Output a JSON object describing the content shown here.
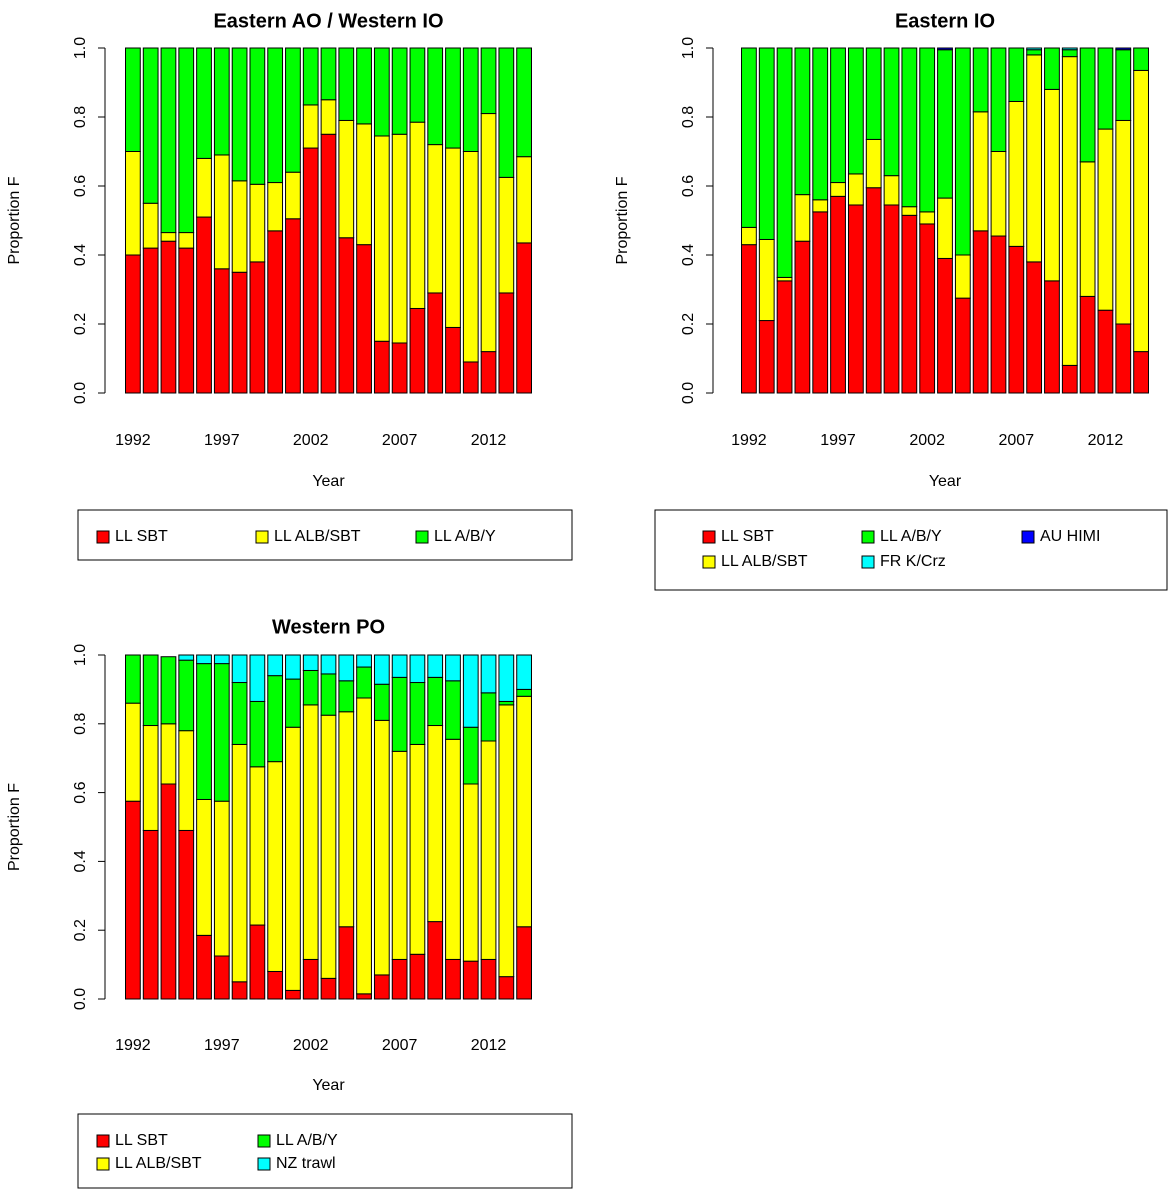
{
  "chart_data": [
    {
      "type": "bar",
      "stacked": true,
      "title": "Eastern AO / Western IO",
      "xlabel": "Year",
      "ylabel": "Proportion F",
      "categories": [
        1992,
        null,
        null,
        null,
        null,
        1997,
        null,
        null,
        null,
        null,
        2002,
        null,
        null,
        null,
        null,
        2007,
        null,
        null,
        null,
        null,
        2012,
        null,
        null
      ],
      "series": [
        {
          "name": "LL SBT",
          "color": "#ff0000",
          "values": [
            0.4,
            0.42,
            0.44,
            0.42,
            0.51,
            0.36,
            0.35,
            0.38,
            0.47,
            0.505,
            0.71,
            0.75,
            0.45,
            0.43,
            0.15,
            0.145,
            0.245,
            0.29,
            0.19,
            0.09,
            0.12,
            0.29,
            0.435
          ]
        },
        {
          "name": "LL ALB/SBT",
          "color": "#ffff00",
          "values": [
            0.3,
            0.13,
            0.025,
            0.045,
            0.17,
            0.33,
            0.265,
            0.225,
            0.14,
            0.135,
            0.125,
            0.1,
            0.34,
            0.35,
            0.595,
            0.605,
            0.54,
            0.43,
            0.52,
            0.61,
            0.69,
            0.335,
            0.25
          ]
        },
        {
          "name": "LL A/B/Y",
          "color": "#00ff00",
          "values": [
            0.3,
            0.45,
            0.535,
            0.535,
            0.32,
            0.31,
            0.385,
            0.395,
            0.39,
            0.36,
            0.165,
            0.15,
            0.21,
            0.22,
            0.255,
            0.25,
            0.215,
            0.28,
            0.29,
            0.3,
            0.19,
            0.375,
            0.315
          ]
        }
      ],
      "ylim": [
        0,
        1
      ],
      "yticks": [
        {
          "value": 0,
          "label": "0.0"
        },
        0.2,
        0.4,
        0.6,
        0.8,
        {
          "value": 1,
          "label": "1.0"
        }
      ],
      "grid": false
    },
    {
      "type": "bar",
      "stacked": true,
      "title": "Eastern IO",
      "xlabel": "Year",
      "ylabel": "Proportion F",
      "categories": [
        1992,
        null,
        null,
        null,
        null,
        1997,
        null,
        null,
        null,
        null,
        2002,
        null,
        null,
        null,
        null,
        2007,
        null,
        null,
        null,
        null,
        2012,
        null,
        null
      ],
      "series": [
        {
          "name": "LL SBT",
          "color": "#ff0000",
          "values": [
            0.43,
            0.21,
            0.325,
            0.44,
            0.525,
            0.57,
            0.545,
            0.595,
            0.545,
            0.515,
            0.49,
            0.39,
            0.275,
            0.47,
            0.455,
            0.425,
            0.38,
            0.325,
            0.08,
            0.28,
            0.24,
            0.2,
            0.12
          ]
        },
        {
          "name": "LL ALB/SBT",
          "color": "#ffff00",
          "values": [
            0.05,
            0.235,
            0.01,
            0.135,
            0.035,
            0.04,
            0.09,
            0.14,
            0.085,
            0.025,
            0.035,
            0.175,
            0.125,
            0.345,
            0.245,
            0.42,
            0.6,
            0.555,
            0.895,
            0.39,
            0.525,
            0.59,
            0.815
          ]
        },
        {
          "name": "LL A/B/Y",
          "color": "#00ff00",
          "values": [
            0.52,
            0.555,
            0.665,
            0.425,
            0.44,
            0.39,
            0.365,
            0.265,
            0.37,
            0.46,
            0.475,
            0.43,
            0.6,
            0.185,
            0.3,
            0.155,
            0.015,
            0.12,
            0.02,
            0.33,
            0.235,
            0.205,
            0.065
          ]
        },
        {
          "name": "FR K/Crz",
          "color": "#00ffff",
          "values": [
            0,
            0,
            0,
            0,
            0,
            0,
            0,
            0,
            0,
            0,
            0,
            0,
            0,
            0,
            0,
            0,
            0.005,
            0,
            0.005,
            0,
            0,
            0,
            0
          ]
        },
        {
          "name": "AU HIMI",
          "color": "#0000ff",
          "values": [
            0,
            0,
            0,
            0,
            0,
            0,
            0,
            0,
            0,
            0,
            0,
            0.005,
            0,
            0,
            0,
            0,
            0,
            0,
            0,
            0,
            0,
            0.005,
            0
          ]
        }
      ],
      "ylim": [
        0,
        1
      ],
      "yticks": [
        {
          "value": 0,
          "label": "0.0"
        },
        0.2,
        0.4,
        0.6,
        0.8,
        {
          "value": 1,
          "label": "1.0"
        }
      ],
      "grid": false
    },
    {
      "type": "bar",
      "stacked": true,
      "title": "Western PO",
      "xlabel": "Year",
      "ylabel": "Proportion F",
      "categories": [
        1992,
        null,
        null,
        null,
        null,
        1997,
        null,
        null,
        null,
        null,
        2002,
        null,
        null,
        null,
        null,
        2007,
        null,
        null,
        null,
        null,
        2012,
        null,
        null
      ],
      "series": [
        {
          "name": "LL SBT",
          "color": "#ff0000",
          "values": [
            0.575,
            0.49,
            0.625,
            0.49,
            0.185,
            0.125,
            0.05,
            0.215,
            0.08,
            0.025,
            0.115,
            0.06,
            0.21,
            0.015,
            0.07,
            0.115,
            0.13,
            0.225,
            0.115,
            0.11,
            0.115,
            0.065,
            0.21
          ]
        },
        {
          "name": "LL ALB/SBT",
          "color": "#ffff00",
          "values": [
            0.285,
            0.305,
            0.175,
            0.29,
            0.395,
            0.45,
            0.69,
            0.46,
            0.61,
            0.765,
            0.74,
            0.765,
            0.625,
            0.86,
            0.74,
            0.605,
            0.61,
            0.57,
            0.64,
            0.515,
            0.635,
            0.79,
            0.67
          ]
        },
        {
          "name": "LL A/B/Y",
          "color": "#00ff00",
          "values": [
            0.14,
            0.205,
            0.195,
            0.205,
            0.395,
            0.4,
            0.18,
            0.19,
            0.25,
            0.14,
            0.1,
            0.12,
            0.09,
            0.09,
            0.105,
            0.215,
            0.18,
            0.14,
            0.17,
            0.165,
            0.14,
            0.01,
            0.02
          ]
        },
        {
          "name": "NZ trawl",
          "color": "#00ffff",
          "values": [
            0,
            0,
            0,
            0.015,
            0.025,
            0.025,
            0.08,
            0.135,
            0.06,
            0.07,
            0.045,
            0.055,
            0.075,
            0.035,
            0.085,
            0.065,
            0.08,
            0.065,
            0.075,
            0.21,
            0.11,
            0.135,
            0.1
          ]
        }
      ],
      "ylim": [
        0,
        1
      ],
      "yticks": [
        {
          "value": 0,
          "label": "0.0"
        },
        0.2,
        0.4,
        0.6,
        0.8,
        {
          "value": 1,
          "label": "1.0"
        }
      ],
      "grid": false
    }
  ]
}
